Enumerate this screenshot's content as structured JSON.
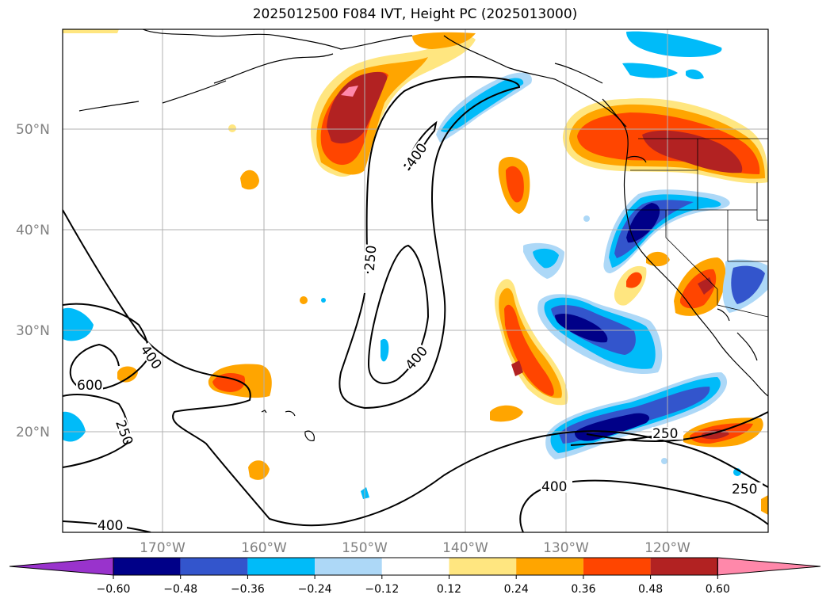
{
  "title": "2025012500 F084 IVT, Height PC (2025013000)",
  "lat_labels": [
    "50°N",
    "40°N",
    "30°N",
    "20°N"
  ],
  "lon_labels": [
    "170°W",
    "160°W",
    "150°W",
    "140°W",
    "130°W",
    "120°W"
  ],
  "contour_labels": [
    "400",
    "250",
    "600",
    "400",
    "250",
    "400",
    "400",
    "250",
    "400",
    "250"
  ],
  "colorbar": {
    "ticks": [
      "−0.60",
      "−0.48",
      "−0.36",
      "−0.24",
      "−0.12",
      "0.12",
      "0.24",
      "0.36",
      "0.48",
      "0.60"
    ],
    "colors": [
      "#9933cc",
      "#000088",
      "#3355cc",
      "#00bbf9",
      "#add8f7",
      "#ffffff",
      "#ffe680",
      "#ffa500",
      "#ff4500",
      "#b22222",
      "#ff88aa"
    ]
  },
  "colors": {
    "land_outline": "#000000",
    "grid": "#b0b0b0",
    "label_gray": "#808080"
  }
}
